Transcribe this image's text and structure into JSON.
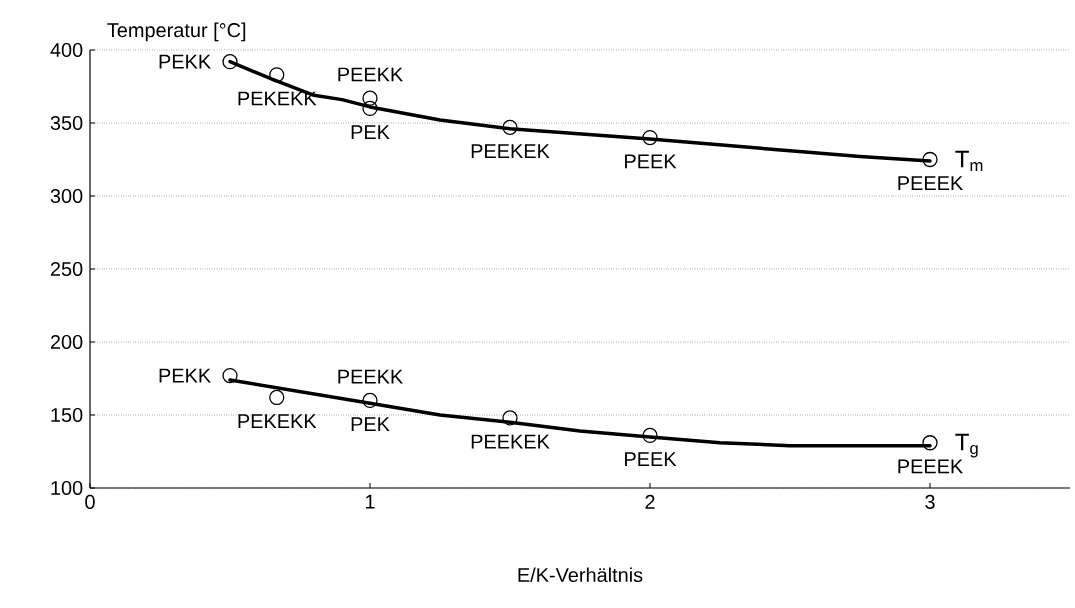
{
  "chart_data": {
    "type": "scatter",
    "xlabel": "E/K-Verhältnis",
    "ylabel": "Temperatur [°C]",
    "xlim": [
      0,
      3.5
    ],
    "ylim": [
      100,
      400
    ],
    "xticks": [
      0,
      1,
      2,
      3
    ],
    "yticks": [
      100,
      150,
      200,
      250,
      300,
      350,
      400
    ],
    "grid": "y",
    "marker": "circle",
    "series": [
      {
        "color": "#000000",
        "x": [
          0.5,
          0.667,
          1,
          1,
          1.5,
          2,
          3
        ],
        "values": [
          392,
          383,
          367,
          360,
          347,
          340,
          325
        ]
      },
      {
        "color": "#000000",
        "x": [
          0.5,
          0.667,
          1,
          1.5,
          2,
          3
        ],
        "values": [
          177,
          162,
          160,
          148,
          136,
          131
        ]
      },
      {
        "type": "line",
        "marker": "none",
        "name": "T$_{m}$",
        "color": "#000000",
        "x": [
          0.5,
          0.65,
          0.8,
          0.9,
          1,
          1.25,
          1.5,
          2,
          2.5,
          2.75,
          3
        ],
        "values": [
          392,
          380,
          369,
          366,
          361,
          352,
          346,
          339,
          331,
          327,
          324
        ]
      },
      {
        "type": "line",
        "marker": "none",
        "name": "T$_{g}$",
        "color": "#000000",
        "x": [
          0.5,
          1,
          1.25,
          1.5,
          1.75,
          2,
          2.25,
          2.5,
          3
        ],
        "values": [
          174,
          158,
          150,
          145,
          139,
          135,
          131,
          129,
          129
        ]
      }
    ],
    "annotations": [
      {
        "text": "PEKK",
        "x": 0.5,
        "y": 392
      },
      {
        "text": "PEKEKK",
        "x": 0.667,
        "y": 383
      },
      {
        "text": "PEEKK",
        "x": 1,
        "y": 367
      },
      {
        "text": "PEK",
        "x": 1,
        "y": 360
      },
      {
        "text": "PEEKEK",
        "x": 1.5,
        "y": 347
      },
      {
        "text": "PEEK",
        "x": 2,
        "y": 340
      },
      {
        "text": "PEEEK",
        "x": 3,
        "y": 325
      },
      {
        "text": "PEKK",
        "x": 0.5,
        "y": 177
      },
      {
        "text": "PEKEKK",
        "x": 0.667,
        "y": 162
      },
      {
        "text": "PEEKK",
        "x": 1,
        "y": 160
      },
      {
        "text": "PEK",
        "x": 1,
        "y": 160
      },
      {
        "text": "PEEKEK",
        "x": 1.5,
        "y": 148
      },
      {
        "text": "PEEK",
        "x": 2,
        "y": 136
      },
      {
        "text": "PEEEK",
        "x": 3,
        "y": 131
      }
    ]
  }
}
